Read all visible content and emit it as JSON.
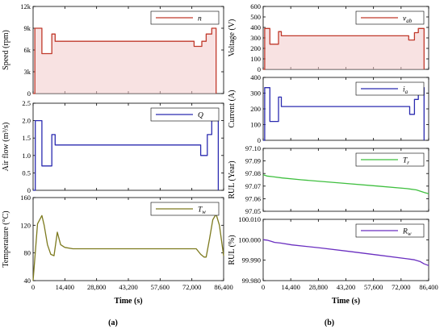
{
  "figure": {
    "panel_labels": [
      "(a)",
      "(b)"
    ]
  },
  "chart_data": [
    {
      "type": "line",
      "ylabel": "Speed (rpm)",
      "ylim": [
        0,
        12000
      ],
      "yticks": [
        0,
        3000,
        6000,
        9000,
        12000
      ],
      "ytick_labels": [
        "0",
        "3k",
        "6k",
        "9k",
        "12k"
      ],
      "xlim": [
        0,
        86400
      ],
      "xticks": [
        0,
        14400,
        28800,
        43200,
        57600,
        72000,
        86400
      ],
      "xtick_labels": [],
      "xlabel": "",
      "color": "#c0392b",
      "fill_color": "#f3caca",
      "legend": "n",
      "legend_sub": "",
      "fill": true,
      "x": [
        0,
        800,
        800,
        4000,
        4000,
        8500,
        8500,
        10000,
        10000,
        73000,
        73000,
        76500,
        76500,
        78500,
        78500,
        81000,
        81000,
        83000,
        83000
      ],
      "y": [
        0,
        0,
        9000,
        9000,
        5500,
        5500,
        8200,
        8200,
        7200,
        7200,
        6500,
        6500,
        7200,
        7200,
        8200,
        8200,
        9000,
        9000,
        0
      ]
    },
    {
      "type": "line",
      "ylabel": "Air flow (m³/s)",
      "ylim": [
        0,
        2.5
      ],
      "yticks": [
        0,
        0.5,
        1.0,
        1.5,
        2.0,
        2.5
      ],
      "ytick_labels": [
        "0",
        "0.5",
        "1.0",
        "1.5",
        "2.0",
        "2.5"
      ],
      "xlim": [
        0,
        86400
      ],
      "xticks": [
        0,
        14400,
        28800,
        43200,
        57600,
        72000,
        86400
      ],
      "xtick_labels": [],
      "xlabel": "",
      "color": "#2b2bb0",
      "fill_color": "#2b2bb0",
      "legend": "Q",
      "legend_sub": "",
      "fill": false,
      "x": [
        0,
        1000,
        1000,
        4000,
        4000,
        8500,
        8500,
        10000,
        10000,
        76000,
        76000,
        79000,
        79000,
        81000,
        81000,
        84000,
        84000
      ],
      "y": [
        0,
        0,
        2.0,
        2.0,
        0.7,
        0.7,
        1.6,
        1.6,
        1.3,
        1.3,
        1.0,
        1.0,
        1.6,
        1.6,
        2.0,
        2.0,
        0
      ]
    },
    {
      "type": "line",
      "ylabel": "Temperature (°C)",
      "ylim": [
        40,
        160
      ],
      "yticks": [
        40,
        80,
        120,
        160
      ],
      "ytick_labels": [
        "40",
        "80",
        "120",
        "160"
      ],
      "xlim": [
        0,
        86400
      ],
      "xticks": [
        0,
        14400,
        28800,
        43200,
        57600,
        72000,
        86400
      ],
      "xtick_labels": [
        "0",
        "14,400",
        "28,800",
        "43,200",
        "57,600",
        "72,000",
        "86,400"
      ],
      "xlabel": "Time (s)",
      "color": "#7d7a1e",
      "fill_color": "#7d7a1e",
      "legend": "T",
      "legend_sub": "w",
      "fill": false,
      "x": [
        0,
        2000,
        4000,
        5000,
        6500,
        8000,
        9500,
        11000,
        12500,
        14400,
        18000,
        25000,
        40000,
        60000,
        74000,
        76000,
        77500,
        78500,
        80000,
        81500,
        83000,
        84500,
        86400
      ],
      "y": [
        40,
        122,
        134,
        120,
        92,
        78,
        76,
        110,
        92,
        88,
        86,
        86,
        86,
        86,
        86,
        78,
        74,
        74,
        100,
        128,
        136,
        120,
        76
      ]
    },
    {
      "type": "line",
      "ylabel": "Voltage (V)",
      "ylim": [
        0,
        600
      ],
      "yticks": [
        0,
        100,
        200,
        300,
        400,
        500,
        600
      ],
      "ytick_labels": [
        "0",
        "100",
        "200",
        "300",
        "400",
        "500",
        "600"
      ],
      "xlim": [
        0,
        86400
      ],
      "xticks": [
        0,
        14400,
        28800,
        43200,
        57600,
        72000,
        86400
      ],
      "xtick_labels": [],
      "xlabel": "",
      "color": "#c0392b",
      "fill_color": "#f3caca",
      "legend": "v",
      "legend_sub": "ab",
      "fill": true,
      "x": [
        0,
        800,
        800,
        3500,
        3500,
        8000,
        8000,
        9500,
        9500,
        76000,
        76000,
        79000,
        79000,
        81000,
        81000,
        84000,
        84000
      ],
      "y": [
        0,
        0,
        390,
        390,
        240,
        240,
        360,
        360,
        320,
        320,
        280,
        280,
        350,
        350,
        390,
        390,
        0
      ]
    },
    {
      "type": "line",
      "ylabel": "Current (A)",
      "ylim": [
        0,
        400
      ],
      "yticks": [
        0,
        100,
        200,
        300,
        400
      ],
      "ytick_labels": [
        "0",
        "100",
        "200",
        "300",
        "400"
      ],
      "xlim": [
        0,
        86400
      ],
      "xticks": [
        0,
        14400,
        28800,
        43200,
        57600,
        72000,
        86400
      ],
      "xtick_labels": [],
      "xlabel": "",
      "color": "#2b2bb0",
      "fill_color": "#2b2bb0",
      "legend": "i",
      "legend_sub": "a",
      "fill": false,
      "x": [
        0,
        800,
        800,
        3500,
        3500,
        8000,
        8000,
        9500,
        9500,
        76500,
        76500,
        79000,
        79000,
        81000,
        81000,
        84000,
        84000
      ],
      "y": [
        0,
        0,
        335,
        335,
        120,
        120,
        275,
        275,
        215,
        215,
        165,
        165,
        260,
        260,
        335,
        335,
        0
      ]
    },
    {
      "type": "line",
      "ylabel": "RUL (Year)",
      "ylim": [
        97.05,
        97.1
      ],
      "yticks": [
        97.05,
        97.06,
        97.07,
        97.08,
        97.09,
        97.1
      ],
      "ytick_labels": [
        "97.05",
        "97.06",
        "97.07",
        "97.08",
        "97.09",
        "97.10"
      ],
      "xlim": [
        0,
        86400
      ],
      "xticks": [
        0,
        14400,
        28800,
        43200,
        57600,
        72000,
        86400
      ],
      "xtick_labels": [],
      "xlabel": "",
      "color": "#3fbf3f",
      "fill_color": "#3fbf3f",
      "legend": "T",
      "legend_sub": "r",
      "fill": false,
      "x": [
        0,
        2000,
        5000,
        10000,
        20000,
        40000,
        60000,
        75000,
        80000,
        84000,
        86400
      ],
      "y": [
        97.079,
        97.078,
        97.0775,
        97.0765,
        97.075,
        97.0725,
        97.07,
        97.068,
        97.067,
        97.065,
        97.064
      ]
    },
    {
      "type": "line",
      "ylabel": "RUL (%)",
      "ylim": [
        99.98,
        100.01
      ],
      "yticks": [
        99.98,
        99.99,
        100.0,
        100.01
      ],
      "ytick_labels": [
        "99.980",
        "99.990",
        "100.000",
        "100.010"
      ],
      "xlim": [
        0,
        86400
      ],
      "xticks": [
        0,
        14400,
        28800,
        43200,
        57600,
        72000,
        86400
      ],
      "xtick_labels": [
        "0",
        "14,400",
        "28,800",
        "43,200",
        "57,600",
        "72,000",
        "86,400"
      ],
      "xlabel": "Time (s)",
      "color": "#6a2fc0",
      "fill_color": "#6a2fc0",
      "legend": "R",
      "legend_sub": "w",
      "fill": false,
      "x": [
        0,
        2000,
        4000,
        6000,
        9000,
        15000,
        30000,
        45000,
        60000,
        75000,
        79000,
        82000,
        84000,
        86400
      ],
      "y": [
        100.0,
        99.9998,
        99.9993,
        99.9987,
        99.9984,
        99.9975,
        99.996,
        99.9943,
        99.9925,
        99.9907,
        99.9902,
        99.9893,
        99.9882,
        99.9874
      ]
    }
  ]
}
